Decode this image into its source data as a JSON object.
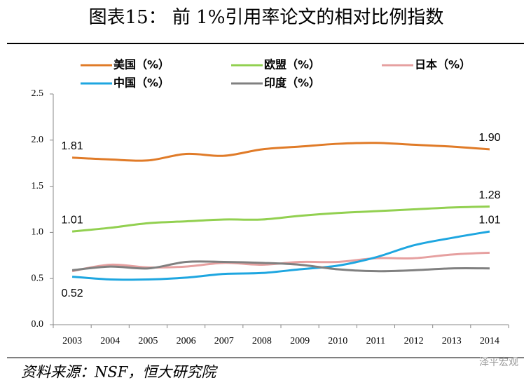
{
  "title": "图表15：  前 1%引用率论文的相对比例指数",
  "source": "资料来源：NSF，恒大研究院",
  "watermark": "泽平宏观",
  "chart_data": {
    "type": "line",
    "categories": [
      "2003",
      "2004",
      "2005",
      "2006",
      "2007",
      "2008",
      "2009",
      "2010",
      "2011",
      "2012",
      "2013",
      "2014"
    ],
    "series": [
      {
        "name": "美国（%）",
        "color": "#e07b28",
        "values": [
          1.81,
          1.79,
          1.78,
          1.85,
          1.83,
          1.9,
          1.93,
          1.96,
          1.97,
          1.95,
          1.93,
          1.9
        ],
        "value_labels": [
          "1.81",
          null,
          null,
          null,
          null,
          null,
          null,
          null,
          null,
          null,
          null,
          "1.90"
        ]
      },
      {
        "name": "欧盟（%）",
        "color": "#92d050",
        "values": [
          1.01,
          1.05,
          1.1,
          1.12,
          1.14,
          1.14,
          1.18,
          1.21,
          1.23,
          1.25,
          1.27,
          1.28
        ],
        "value_labels": [
          "1.01",
          null,
          null,
          null,
          null,
          null,
          null,
          null,
          null,
          null,
          null,
          "1.28"
        ]
      },
      {
        "name": "日本（%）",
        "color": "#e6a0a0",
        "values": [
          0.58,
          0.65,
          0.62,
          0.63,
          0.67,
          0.65,
          0.68,
          0.68,
          0.72,
          0.72,
          0.76,
          0.78
        ]
      },
      {
        "name": "中国（%）",
        "color": "#1ea6e0",
        "values": [
          0.52,
          0.49,
          0.49,
          0.51,
          0.55,
          0.56,
          0.6,
          0.64,
          0.73,
          0.86,
          0.94,
          1.01
        ],
        "value_labels": [
          "0.52",
          null,
          null,
          null,
          null,
          null,
          null,
          null,
          null,
          null,
          null,
          "1.01"
        ]
      },
      {
        "name": "印度（%）",
        "color": "#808080",
        "values": [
          0.59,
          0.63,
          0.61,
          0.68,
          0.68,
          0.67,
          0.65,
          0.6,
          0.58,
          0.59,
          0.61,
          0.61
        ]
      }
    ],
    "ylim": [
      0,
      2.5
    ],
    "yticks": [
      {
        "value": 0,
        "label": "0.0"
      },
      {
        "value": 0.5,
        "label": "0.5"
      },
      {
        "value": 1,
        "label": "1.0"
      },
      {
        "value": 1.5,
        "label": "1.5"
      },
      {
        "value": 2,
        "label": "2.0"
      },
      {
        "value": 2.5,
        "label": "2.5"
      }
    ],
    "grid": false,
    "legend": "top"
  }
}
